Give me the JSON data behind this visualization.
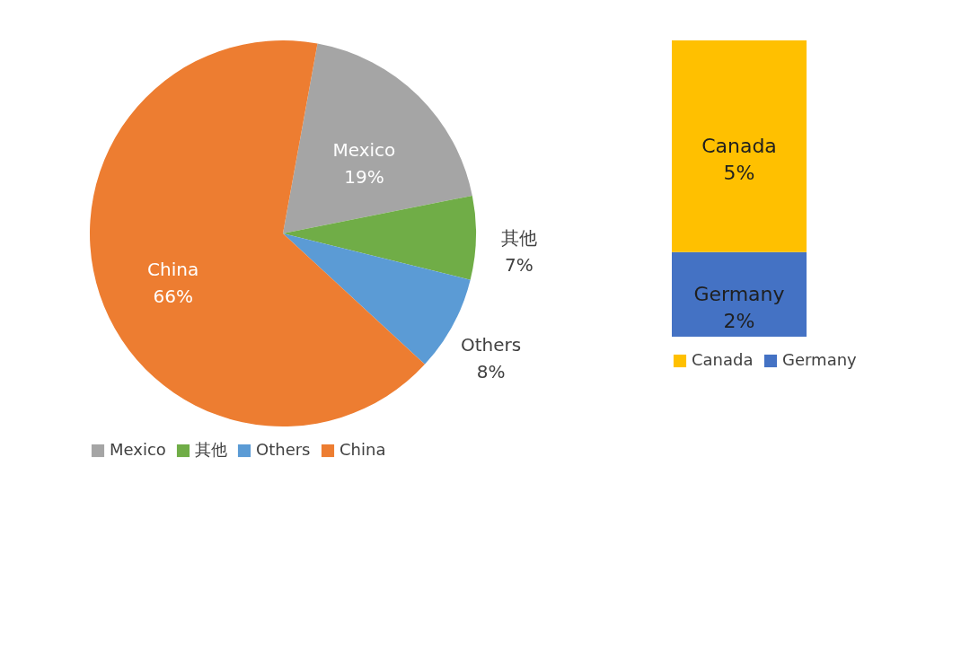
{
  "chart_data": [
    {
      "type": "pie",
      "categories": [
        "Mexico",
        "其他",
        "Others",
        "China"
      ],
      "values": [
        19,
        7,
        8,
        66
      ],
      "colors": [
        "#a5a5a5",
        "#70ad47",
        "#5b9bd5",
        "#ed7d31"
      ],
      "value_labels": [
        "19%",
        "7%",
        "8%",
        "66%"
      ],
      "legend": "bottom"
    },
    {
      "type": "bar",
      "stacked": true,
      "categories": [
        null
      ],
      "tick_labels": false,
      "legend": "bottom",
      "series": [
        {
          "name": "Germany",
          "color": "#4472c4",
          "values": [
            2
          ],
          "value_labels": [
            "2%"
          ]
        },
        {
          "name": "Canada",
          "color": "#ffc000",
          "values": [
            5
          ],
          "value_labels": [
            "5%"
          ]
        }
      ]
    }
  ]
}
